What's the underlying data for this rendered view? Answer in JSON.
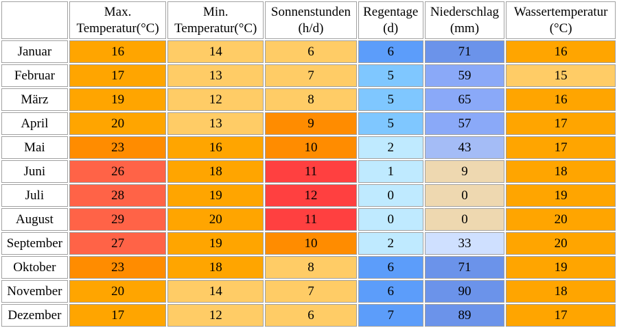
{
  "headers": [
    {
      "line1": "Max.",
      "line2": "Temperatur(°C)"
    },
    {
      "line1": "Min.",
      "line2": "Temperatur(°C)"
    },
    {
      "line1": "Sonnenstunden",
      "line2": "(h/d)"
    },
    {
      "line1": "Regentage",
      "line2": "(d)"
    },
    {
      "line1": "Niederschlag",
      "line2": "(mm)"
    },
    {
      "line1": "Wassertemperatur",
      "line2": "(°C)"
    }
  ],
  "rows": [
    {
      "month": "Januar",
      "values": [
        "16",
        "14",
        "6",
        "6",
        "71",
        "16"
      ],
      "colors": [
        "#ffa500",
        "#ffcc66",
        "#ffcc66",
        "#5c9dfa",
        "#6b93ea",
        "#ffa500"
      ]
    },
    {
      "month": "Februar",
      "values": [
        "17",
        "13",
        "7",
        "5",
        "59",
        "15"
      ],
      "colors": [
        "#ffa500",
        "#ffcc66",
        "#ffcc66",
        "#7fc7ff",
        "#8aa9f8",
        "#ffcc66"
      ]
    },
    {
      "month": "März",
      "values": [
        "19",
        "12",
        "8",
        "5",
        "65",
        "16"
      ],
      "colors": [
        "#ffa500",
        "#ffcc66",
        "#ffcc66",
        "#7fc7ff",
        "#8aa9f8",
        "#ffa500"
      ]
    },
    {
      "month": "April",
      "values": [
        "20",
        "13",
        "9",
        "5",
        "57",
        "17"
      ],
      "colors": [
        "#ffa500",
        "#ffcc66",
        "#ff8c00",
        "#7fc7ff",
        "#8aa9f8",
        "#ffa500"
      ]
    },
    {
      "month": "Mai",
      "values": [
        "23",
        "16",
        "10",
        "2",
        "43",
        "17"
      ],
      "colors": [
        "#ff8c00",
        "#ffa500",
        "#ff8c00",
        "#bfeaff",
        "#a4bcf6",
        "#ffa500"
      ]
    },
    {
      "month": "Juni",
      "values": [
        "26",
        "18",
        "11",
        "1",
        "9",
        "18"
      ],
      "colors": [
        "#ff6347",
        "#ffa500",
        "#ff4040",
        "#bfeaff",
        "#eed8b0",
        "#ffa500"
      ]
    },
    {
      "month": "Juli",
      "values": [
        "28",
        "19",
        "12",
        "0",
        "0",
        "19"
      ],
      "colors": [
        "#ff6347",
        "#ffa500",
        "#ff4040",
        "#bfeaff",
        "#eed8b0",
        "#ffa500"
      ]
    },
    {
      "month": "August",
      "values": [
        "29",
        "20",
        "11",
        "0",
        "0",
        "20"
      ],
      "colors": [
        "#ff6347",
        "#ffa500",
        "#ff4040",
        "#bfeaff",
        "#eed8b0",
        "#ffa500"
      ]
    },
    {
      "month": "September",
      "values": [
        "27",
        "19",
        "10",
        "2",
        "33",
        "20"
      ],
      "colors": [
        "#ff6347",
        "#ffa500",
        "#ff8c00",
        "#bfeaff",
        "#cfe0ff",
        "#ffa500"
      ]
    },
    {
      "month": "Oktober",
      "values": [
        "23",
        "18",
        "8",
        "6",
        "71",
        "19"
      ],
      "colors": [
        "#ff8c00",
        "#ffa500",
        "#ffcc66",
        "#5c9dfa",
        "#6b93ea",
        "#ffa500"
      ]
    },
    {
      "month": "November",
      "values": [
        "20",
        "14",
        "7",
        "6",
        "90",
        "18"
      ],
      "colors": [
        "#ffa500",
        "#ffcc66",
        "#ffcc66",
        "#5c9dfa",
        "#6b93ea",
        "#ffa500"
      ]
    },
    {
      "month": "Dezember",
      "values": [
        "17",
        "12",
        "6",
        "7",
        "89",
        "17"
      ],
      "colors": [
        "#ffa500",
        "#ffcc66",
        "#ffcc66",
        "#5c9dfa",
        "#6b93ea",
        "#ffa500"
      ]
    }
  ]
}
